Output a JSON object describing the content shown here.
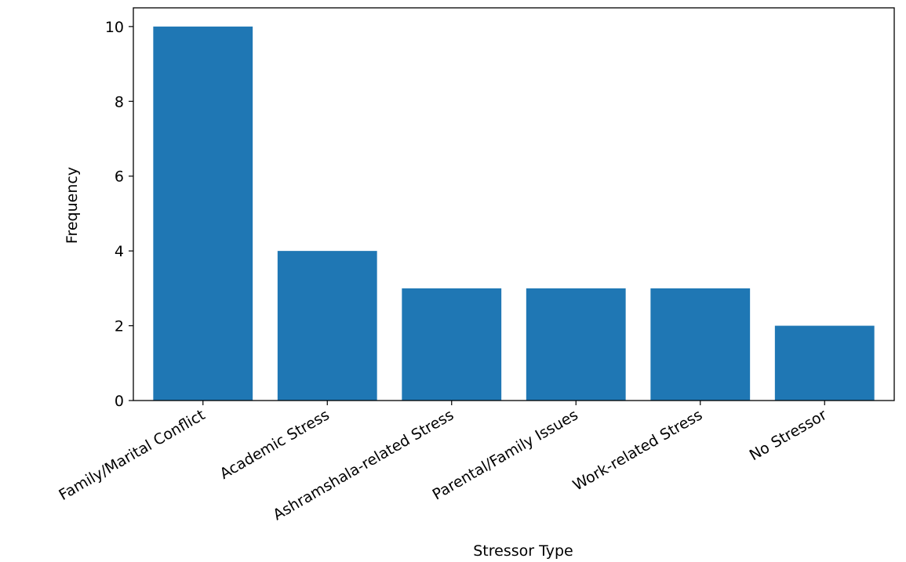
{
  "chart_data": {
    "type": "bar",
    "categories": [
      "Family/Marital Conflict",
      "Academic Stress",
      "Ashramshala-related Stress",
      "Parental/Family Issues",
      "Work-related Stress",
      "No Stressor"
    ],
    "values": [
      10,
      4,
      3,
      3,
      3,
      2
    ],
    "xlabel": "Stressor Type",
    "ylabel": "Frequency",
    "ylim": [
      0,
      10.5
    ],
    "yticks": [
      0,
      2,
      4,
      6,
      8,
      10
    ],
    "grid": false,
    "bar_color": "#1f77b4"
  }
}
